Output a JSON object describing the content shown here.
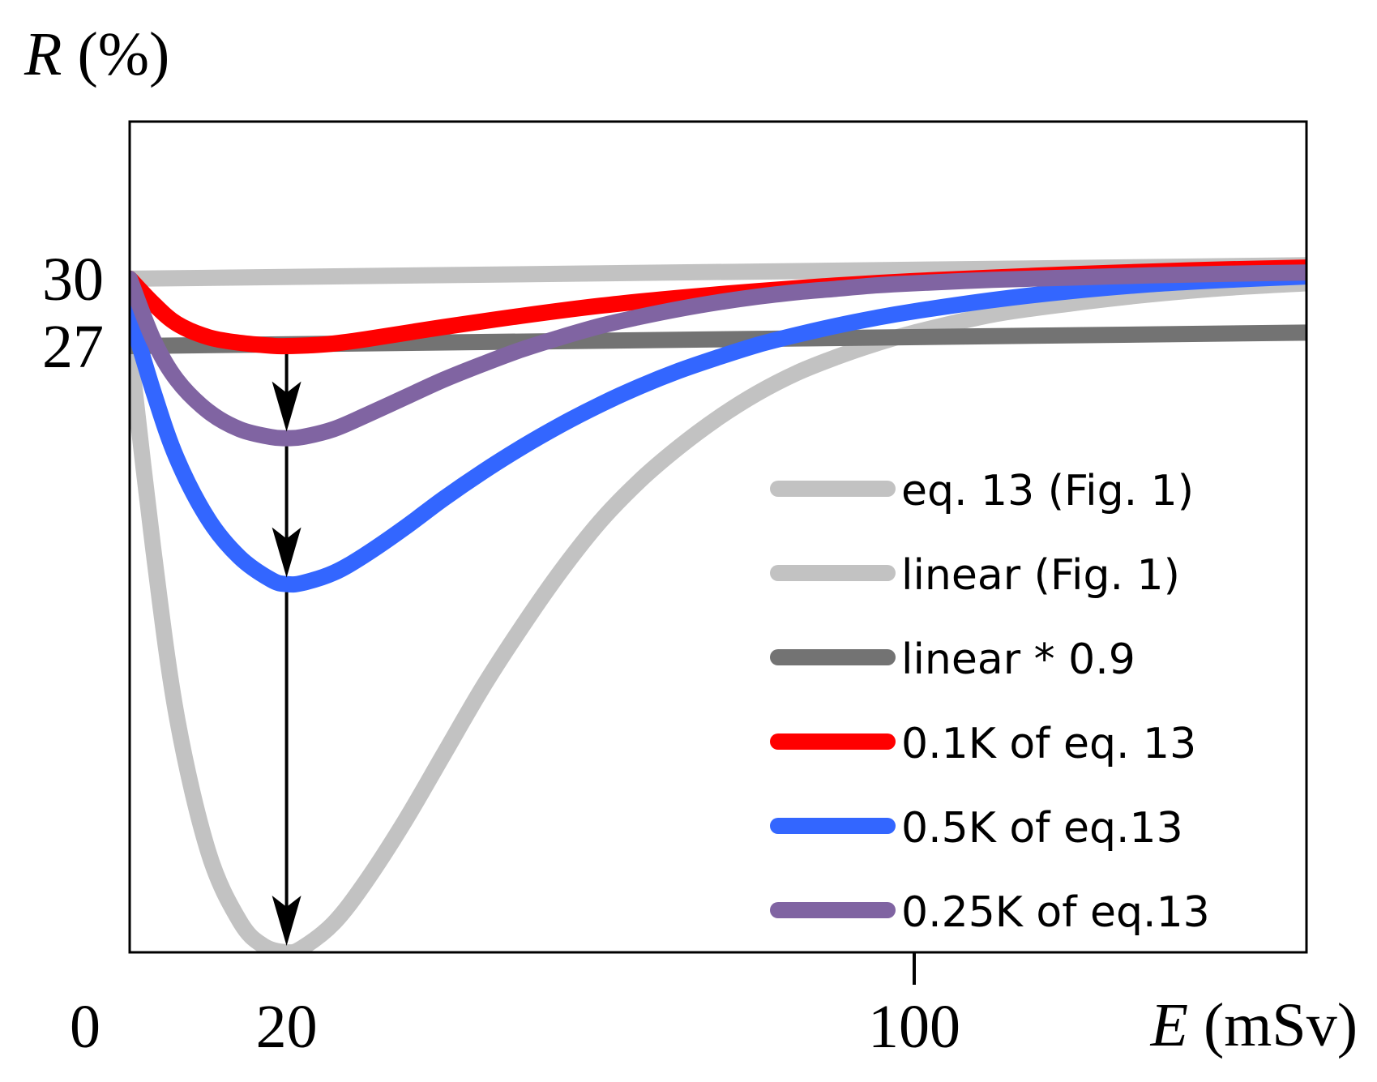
{
  "chart_data": {
    "type": "line",
    "title": "",
    "ylabel_var": "R",
    "ylabel_unit": " (%)",
    "xlabel_var": "E",
    "xlabel_unit": " (mSv)",
    "xlim": [
      0,
      150
    ],
    "ylim": [
      0,
      37
    ],
    "x_ticks": [
      {
        "value": 0,
        "label": "0"
      },
      {
        "value": 20,
        "label": "20"
      },
      {
        "value": 100,
        "label": "100"
      }
    ],
    "y_ticks": [
      {
        "value": 30,
        "label": "30"
      },
      {
        "value": 27,
        "label": "27"
      }
    ],
    "series": [
      {
        "name": "eq. 13 (Fig. 1)",
        "color": "#c2c2c2",
        "x": [
          0,
          3,
          6,
          10,
          14,
          17,
          20,
          22,
          26,
          30,
          35,
          40,
          45,
          50,
          55,
          60,
          65,
          70,
          75,
          80,
          85,
          90,
          95,
          100,
          110,
          120,
          130,
          140,
          150
        ],
        "y": [
          27.0,
          18.0,
          10.5,
          4.5,
          1.4,
          0.3,
          0.0,
          0.2,
          1.3,
          3.1,
          5.8,
          8.8,
          11.8,
          14.5,
          17.0,
          19.2,
          21.0,
          22.5,
          23.8,
          24.9,
          25.8,
          26.5,
          27.1,
          27.6,
          28.4,
          28.9,
          29.3,
          29.6,
          29.8
        ]
      },
      {
        "name": "linear (Fig. 1)",
        "color": "#c2c2c2",
        "x": [
          0,
          150
        ],
        "y": [
          30.0,
          30.6
        ]
      },
      {
        "name": "linear * 0.9",
        "color": "#737373",
        "x": [
          0,
          150
        ],
        "y": [
          27.0,
          27.6
        ]
      },
      {
        "name": "0.1K of eq. 13",
        "color": "#ff0000",
        "x": [
          0,
          3,
          6,
          10,
          14,
          18,
          20,
          25,
          30,
          40,
          50,
          60,
          70,
          80,
          90,
          100,
          110,
          120,
          130,
          140,
          150
        ],
        "y": [
          30.0,
          28.9,
          28.0,
          27.4,
          27.15,
          27.02,
          27.0,
          27.08,
          27.3,
          27.85,
          28.35,
          28.8,
          29.15,
          29.45,
          29.7,
          29.9,
          30.05,
          30.2,
          30.32,
          30.42,
          30.5
        ]
      },
      {
        "name": "0.5K of eq.13",
        "color": "#3366ff",
        "x": [
          0,
          3,
          6,
          10,
          14,
          18,
          20,
          22,
          26,
          30,
          35,
          40,
          45,
          50,
          55,
          60,
          65,
          70,
          75,
          80,
          85,
          90,
          95,
          100,
          110,
          120,
          130,
          140,
          150
        ],
        "y": [
          28.5,
          25.0,
          22.0,
          19.3,
          17.6,
          16.6,
          16.4,
          16.45,
          16.9,
          17.7,
          18.9,
          20.2,
          21.4,
          22.5,
          23.5,
          24.4,
          25.2,
          25.9,
          26.5,
          27.05,
          27.5,
          27.9,
          28.25,
          28.55,
          29.05,
          29.45,
          29.75,
          29.95,
          30.1
        ]
      },
      {
        "name": "0.25K of eq.13",
        "color": "#8064a2",
        "x": [
          0,
          3,
          6,
          10,
          14,
          18,
          20,
          22,
          26,
          30,
          35,
          40,
          45,
          50,
          55,
          60,
          65,
          70,
          75,
          80,
          85,
          90,
          95,
          100,
          110,
          120,
          130,
          140,
          150
        ],
        "y": [
          30.0,
          27.3,
          25.5,
          24.1,
          23.3,
          22.95,
          22.9,
          22.95,
          23.3,
          23.9,
          24.7,
          25.5,
          26.2,
          26.85,
          27.4,
          27.9,
          28.3,
          28.65,
          28.95,
          29.2,
          29.4,
          29.55,
          29.7,
          29.8,
          29.95,
          30.05,
          30.15,
          30.22,
          30.28
        ]
      }
    ],
    "arrows": [
      {
        "x": 20,
        "from_y": 27.0,
        "to_y": 22.9
      },
      {
        "x": 20,
        "from_y": 22.9,
        "to_y": 16.4
      },
      {
        "x": 20,
        "from_y": 16.4,
        "to_y": 0.0
      }
    ],
    "legend": {
      "position": "lower-right",
      "entries": [
        "eq. 13 (Fig. 1)",
        "linear (Fig. 1)",
        "linear * 0.9",
        "0.1K of eq. 13",
        "0.5K of eq.13",
        "0.25K of eq.13"
      ]
    }
  }
}
